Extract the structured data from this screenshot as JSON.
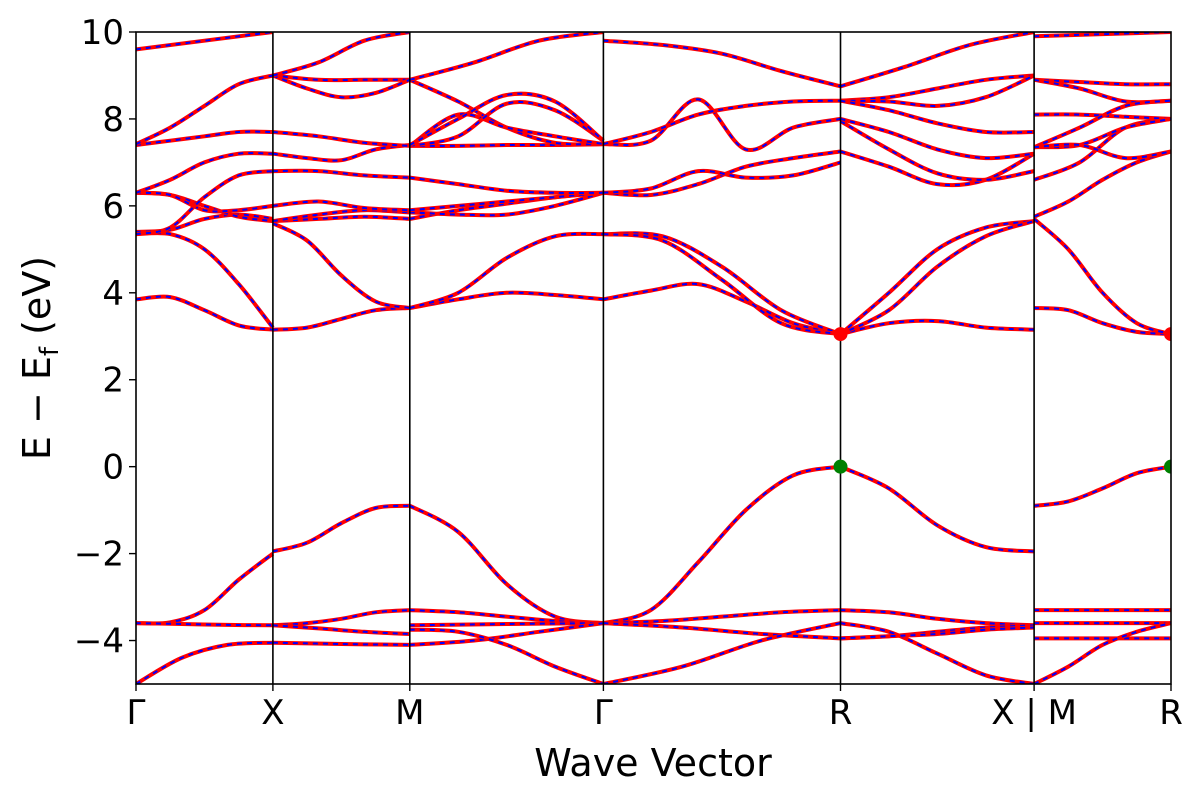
{
  "chart_data": {
    "type": "line",
    "xlabel": "Wave Vector",
    "ylabel_main": "E  −  E",
    "ylabel_sub": "f",
    "ylabel_unit": " (eV)",
    "ylim": [
      -5,
      10
    ],
    "yticks": [
      -4,
      -2,
      0,
      2,
      4,
      6,
      8,
      10
    ],
    "kpath": [
      {
        "label": "Γ",
        "k": 0.0
      },
      {
        "label": "X",
        "k": 0.5
      },
      {
        "label": "M",
        "k": 1.0
      },
      {
        "label": "Γ",
        "k": 1.7071
      },
      {
        "label": "R",
        "k": 2.5731
      },
      {
        "label": "X | M",
        "k": 3.2802
      },
      {
        "label": "R",
        "k": 3.7802
      }
    ],
    "xlim": [
      0,
      3.7802
    ],
    "colors": {
      "bands_primary": "#ff0000",
      "bands_dashed": "#0000ff",
      "cbm_marker": "#ff0000",
      "vbm_marker": "#008000",
      "vlines": "#000000"
    },
    "band_markers": [
      {
        "name": "CBM",
        "k": 2.5731,
        "E": 3.05,
        "color": "#ff0000"
      },
      {
        "name": "CBM",
        "k": 3.7802,
        "E": 3.05,
        "color": "#ff0000"
      },
      {
        "name": "VBM",
        "k": 2.5731,
        "E": 0.0,
        "color": "#008000"
      },
      {
        "name": "VBM",
        "k": 3.7802,
        "E": 0.0,
        "color": "#008000"
      }
    ],
    "bands": [
      {
        "segment": "Γ-X",
        "E": [
          -3.6,
          -3.58,
          -3.3,
          -2.6,
          -2.0
        ]
      },
      {
        "segment": "X-M",
        "E": [
          -1.95,
          -1.75,
          -1.3,
          -0.95,
          -0.9
        ]
      },
      {
        "segment": "M-Γ",
        "E": [
          -0.9,
          -1.5,
          -2.7,
          -3.45,
          -3.6
        ]
      },
      {
        "segment": "Γ-R",
        "E": [
          -3.6,
          -3.3,
          -2.2,
          -1.0,
          -0.2,
          0.0
        ]
      },
      {
        "segment": "R-X",
        "E": [
          0.0,
          -0.5,
          -1.35,
          -1.85,
          -1.95
        ]
      },
      {
        "segment": "M-R",
        "E": [
          -0.9,
          -0.8,
          -0.5,
          -0.15,
          0.0
        ]
      },
      {
        "segment": "Γ-X",
        "E": [
          -3.6,
          -3.62,
          -3.64,
          -3.65
        ]
      },
      {
        "segment": "X-M",
        "E": [
          -3.65,
          -3.6,
          -3.5,
          -3.35,
          -3.3
        ]
      },
      {
        "segment": "M-Γ",
        "E": [
          -3.3,
          -3.35,
          -3.45,
          -3.55,
          -3.6
        ]
      },
      {
        "segment": "Γ-R",
        "E": [
          -3.6,
          -3.55,
          -3.45,
          -3.35,
          -3.3
        ]
      },
      {
        "segment": "R-X",
        "E": [
          -3.3,
          -3.35,
          -3.5,
          -3.6,
          -3.65
        ]
      },
      {
        "segment": "M-R",
        "E": [
          -3.3,
          -3.3,
          -3.3
        ]
      },
      {
        "segment": "X-M",
        "E": [
          -3.65,
          -3.72,
          -3.8,
          -3.85
        ]
      },
      {
        "segment": "M-Γ",
        "E": [
          -3.65,
          -3.62,
          -3.6
        ]
      },
      {
        "segment": "Γ-R",
        "E": [
          -3.6,
          -3.7,
          -3.85,
          -3.95
        ]
      },
      {
        "segment": "R-X",
        "E": [
          -3.95,
          -3.9,
          -3.8,
          -3.7,
          -3.65
        ]
      },
      {
        "segment": "M-R",
        "E": [
          -3.95,
          -3.95,
          -3.95
        ]
      },
      {
        "segment": "M-R",
        "E": [
          -3.6,
          -3.6,
          -3.6
        ]
      },
      {
        "segment": "Γ-X",
        "E": [
          -5.0,
          -4.4,
          -4.1,
          -4.05
        ]
      },
      {
        "segment": "X-M",
        "E": [
          -4.05,
          -4.08,
          -4.1
        ]
      },
      {
        "segment": "M-Γ",
        "E": [
          -4.1,
          -4.0,
          -3.8,
          -3.6
        ]
      },
      {
        "segment": "M-Γ",
        "E": [
          -3.75,
          -3.8,
          -4.1,
          -4.6,
          -5.0
        ]
      },
      {
        "segment": "Γ-R",
        "E": [
          -5.0,
          -4.6,
          -4.0,
          -3.6
        ]
      },
      {
        "segment": "R-X",
        "E": [
          -3.6,
          -3.8,
          -4.3,
          -4.8,
          -5.0
        ]
      },
      {
        "segment": "R-X",
        "E": [
          -3.95,
          -3.9,
          -3.85,
          -3.75,
          -3.7
        ]
      },
      {
        "segment": "M-R",
        "E": [
          -5.0,
          -4.6,
          -4.1,
          -3.8,
          -3.6
        ]
      },
      {
        "segment": "Γ-X",
        "E": [
          3.85,
          3.9,
          3.6,
          3.25,
          3.15
        ]
      },
      {
        "segment": "X-M",
        "E": [
          3.15,
          3.2,
          3.4,
          3.6,
          3.65
        ]
      },
      {
        "segment": "M-Γ",
        "E": [
          3.65,
          3.85,
          4.0,
          3.95,
          3.85
        ]
      },
      {
        "segment": "Γ-R",
        "E": [
          3.85,
          4.05,
          4.2,
          3.8,
          3.3,
          3.05
        ]
      },
      {
        "segment": "R-X",
        "E": [
          3.05,
          3.3,
          3.35,
          3.2,
          3.15
        ]
      },
      {
        "segment": "M-R",
        "E": [
          3.65,
          3.6,
          3.3,
          3.1,
          3.05
        ]
      },
      {
        "segment": "Γ-X",
        "E": [
          5.35,
          5.35,
          5.0,
          4.2,
          3.2
        ]
      },
      {
        "segment": "X-M",
        "E": [
          5.6,
          5.2,
          4.4,
          3.8,
          3.65
        ]
      },
      {
        "segment": "M-Γ",
        "E": [
          3.65,
          4.0,
          4.8,
          5.3,
          5.35
        ]
      },
      {
        "segment": "Γ-R",
        "E": [
          5.35,
          5.3,
          4.6,
          3.6,
          3.05
        ]
      },
      {
        "segment": "Γ-R",
        "E": [
          5.35,
          5.2,
          4.3,
          3.3,
          3.05
        ]
      },
      {
        "segment": "R-X",
        "E": [
          3.05,
          4.0,
          5.0,
          5.5,
          5.65
        ]
      },
      {
        "segment": "R-X",
        "E": [
          3.05,
          3.6,
          4.6,
          5.3,
          5.65
        ]
      },
      {
        "segment": "M-R",
        "E": [
          5.7,
          5.0,
          4.0,
          3.3,
          3.05
        ]
      },
      {
        "segment": "Γ-X",
        "E": [
          5.4,
          5.45,
          5.7,
          5.8,
          5.7
        ]
      },
      {
        "segment": "X-M",
        "E": [
          5.65,
          5.7,
          5.75,
          5.7
        ]
      },
      {
        "segment": "M-Γ",
        "E": [
          5.7,
          5.9,
          6.05,
          6.2,
          6.3
        ]
      },
      {
        "segment": "Γ-X",
        "E": [
          6.3,
          6.25,
          6.0,
          5.75,
          5.65
        ]
      },
      {
        "segment": "X-M",
        "E": [
          5.65,
          5.8,
          5.9,
          5.85
        ]
      },
      {
        "segment": "M-Γ",
        "E": [
          5.85,
          5.8,
          5.8,
          6.0,
          6.3
        ]
      },
      {
        "segment": "Γ-X",
        "E": [
          6.3,
          6.25,
          5.9,
          5.9,
          6.0
        ]
      },
      {
        "segment": "X-M",
        "E": [
          6.0,
          6.1,
          5.95,
          5.9
        ]
      },
      {
        "segment": "M-Γ",
        "E": [
          5.9,
          6.0,
          6.1,
          6.2,
          6.3
        ]
      },
      {
        "segment": "Γ-X",
        "E": [
          5.35,
          5.5,
          6.2,
          6.7,
          6.8
        ]
      },
      {
        "segment": "X-M",
        "E": [
          6.8,
          6.8,
          6.7,
          6.65
        ]
      },
      {
        "segment": "M-Γ",
        "E": [
          6.65,
          6.5,
          6.35,
          6.3,
          6.3
        ]
      },
      {
        "segment": "Γ-X",
        "E": [
          6.3,
          6.6,
          7.0,
          7.2,
          7.2
        ]
      },
      {
        "segment": "X-M",
        "E": [
          7.2,
          7.1,
          7.05,
          7.3,
          7.4
        ]
      },
      {
        "segment": "Γ-R",
        "E": [
          6.3,
          6.25,
          6.5,
          6.9,
          7.1,
          7.25
        ]
      },
      {
        "segment": "Γ-R",
        "E": [
          6.3,
          6.4,
          6.8,
          6.65,
          6.7,
          7.0
        ]
      },
      {
        "segment": "R-X",
        "E": [
          7.25,
          6.9,
          6.5,
          6.6,
          7.2
        ]
      },
      {
        "segment": "R-X",
        "E": [
          7.95,
          7.3,
          6.75,
          6.6,
          6.8
        ]
      },
      {
        "segment": "M-R",
        "E": [
          5.75,
          6.1,
          6.6,
          7.0,
          7.25
        ]
      },
      {
        "segment": "M-R",
        "E": [
          6.6,
          7.0,
          7.8,
          8.0
        ]
      },
      {
        "segment": "Γ-X",
        "E": [
          7.4,
          7.5,
          7.6,
          7.7,
          7.7
        ]
      },
      {
        "segment": "X-M",
        "E": [
          7.7,
          7.6,
          7.45,
          7.38
        ]
      },
      {
        "segment": "M-Γ",
        "E": [
          7.38,
          7.38,
          7.4,
          7.4,
          7.42
        ]
      },
      {
        "segment": "Γ-X",
        "E": [
          7.42,
          7.8,
          8.3,
          8.8,
          9.0
        ]
      },
      {
        "segment": "X-M",
        "E": [
          9.0,
          8.9,
          8.9,
          8.9
        ]
      },
      {
        "segment": "X-M",
        "E": [
          9.0,
          8.7,
          8.5,
          8.6,
          8.9
        ]
      },
      {
        "segment": "M-Γ",
        "E": [
          8.9,
          8.4,
          7.8,
          7.45,
          7.42
        ]
      },
      {
        "segment": "Γ-X",
        "E": [
          9.6,
          10.0
        ]
      },
      {
        "segment": "X-M",
        "E": [
          9.0,
          9.3,
          9.8,
          10.0
        ]
      },
      {
        "segment": "M-Γ",
        "E": [
          8.9,
          9.3,
          9.8,
          10.0
        ]
      },
      {
        "segment": "M-Γ",
        "E": [
          7.38,
          8.1,
          7.8,
          7.6,
          7.42
        ]
      },
      {
        "segment": "M-Γ",
        "E": [
          7.38,
          7.6,
          8.35,
          8.2,
          7.5
        ]
      },
      {
        "segment": "M-Γ",
        "E": [
          7.4,
          8.0,
          8.55,
          8.4,
          7.5
        ]
      },
      {
        "segment": "Γ-R",
        "E": [
          7.42,
          7.5,
          8.45,
          7.3,
          7.8,
          8.0
        ]
      },
      {
        "segment": "Γ-R",
        "E": [
          7.42,
          7.7,
          8.1,
          8.3,
          8.4,
          8.42
        ]
      },
      {
        "segment": "Γ-R",
        "E": [
          9.8,
          9.7,
          9.5,
          9.1,
          8.75
        ]
      },
      {
        "segment": "R-X",
        "E": [
          8.75,
          9.2,
          9.7,
          10.0
        ]
      },
      {
        "segment": "R-X",
        "E": [
          8.42,
          8.5,
          8.7,
          8.9,
          9.0
        ]
      },
      {
        "segment": "R-X",
        "E": [
          8.42,
          8.4,
          8.3,
          8.5,
          9.0
        ]
      },
      {
        "segment": "R-X",
        "E": [
          8.42,
          8.2,
          7.9,
          7.7,
          7.7
        ]
      },
      {
        "segment": "R-X",
        "E": [
          8.0,
          7.7,
          7.3,
          7.1,
          7.2
        ]
      },
      {
        "segment": "M-R",
        "E": [
          8.9,
          8.85,
          8.8,
          8.8
        ]
      },
      {
        "segment": "M-R",
        "E": [
          8.9,
          8.7,
          8.4,
          8.42
        ]
      },
      {
        "segment": "M-R",
        "E": [
          8.1,
          8.1,
          8.05,
          8.0
        ]
      },
      {
        "segment": "M-R",
        "E": [
          7.35,
          7.4,
          7.8,
          8.0
        ]
      },
      {
        "segment": "M-R",
        "E": [
          7.35,
          7.8,
          8.3,
          8.42
        ]
      },
      {
        "segment": "M-R",
        "E": [
          7.35,
          7.4,
          7.1,
          7.25
        ]
      },
      {
        "segment": "M-R",
        "E": [
          9.9,
          10.0
        ]
      }
    ]
  }
}
